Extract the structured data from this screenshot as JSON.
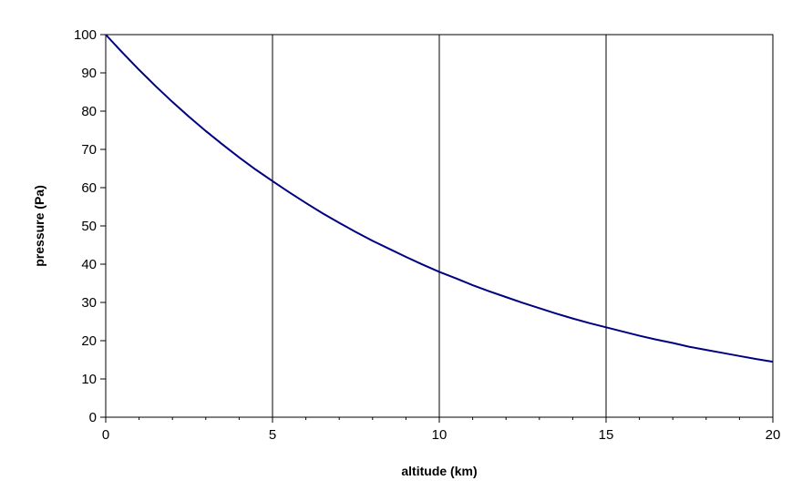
{
  "chart_data": {
    "type": "line",
    "title": "",
    "xlabel": "altitude (km)",
    "ylabel": "pressure (Pa)",
    "xlim": [
      0,
      20
    ],
    "ylim": [
      0,
      100
    ],
    "x_ticks": [
      0,
      5,
      10,
      15,
      20
    ],
    "y_ticks": [
      0,
      10,
      20,
      30,
      40,
      50,
      60,
      70,
      80,
      90,
      100
    ],
    "grid": {
      "vertical": true,
      "horizontal": false
    },
    "legend": "none",
    "line_color": "#000080",
    "series": [
      {
        "x": [
          0,
          0.5,
          1,
          1.5,
          2,
          2.5,
          3,
          3.5,
          4,
          4.5,
          5,
          5.5,
          6,
          6.5,
          7,
          7.5,
          8,
          8.5,
          9,
          9.5,
          10,
          10.5,
          11,
          11.5,
          12,
          12.5,
          13,
          13.5,
          14,
          14.5,
          15,
          15.5,
          16,
          16.5,
          17,
          17.5,
          18,
          18.5,
          19,
          19.5,
          20
        ],
        "y": [
          100,
          95.3,
          90.8,
          86.5,
          82.4,
          78.5,
          74.8,
          71.3,
          67.9,
          64.7,
          61.7,
          58.8,
          56.0,
          53.3,
          50.8,
          48.4,
          46.1,
          44.0,
          41.9,
          39.9,
          38.0,
          36.3,
          34.5,
          32.9,
          31.4,
          29.9,
          28.5,
          27.1,
          25.8,
          24.6,
          23.5,
          22.4,
          21.3,
          20.3,
          19.4,
          18.4,
          17.6,
          16.8,
          16.0,
          15.2,
          14.5
        ]
      }
    ]
  }
}
